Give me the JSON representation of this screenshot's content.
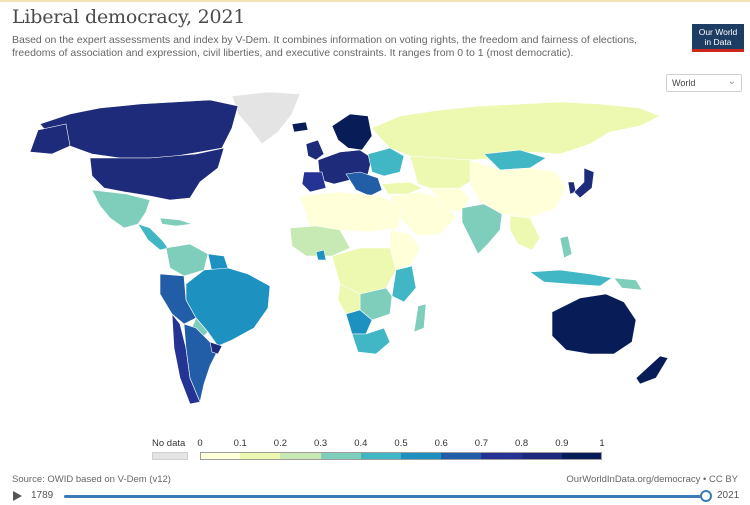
{
  "header": {
    "title": "Liberal democracy, 2021",
    "subtitle": "Based on the expert assessments and index by V-Dem. It combines information on voting rights, the freedom and fairness of elections, freedoms of association and expression, civil liberties, and executive constraints. It ranges from 0 to 1 (most democratic).",
    "logo_line1": "Our World",
    "logo_line2": "in Data",
    "logo_color": "#1d3d63",
    "logo_accent": "#ce261e"
  },
  "controls": {
    "region_select": "World",
    "region_icon": "chevron-down-icon"
  },
  "legend": {
    "no_data_label": "No data",
    "no_data_color": "#e4e4e4",
    "ticks": [
      "0",
      "0.1",
      "0.2",
      "0.3",
      "0.4",
      "0.5",
      "0.6",
      "0.7",
      "0.8",
      "0.9",
      "1"
    ],
    "bins": [
      {
        "from": 0,
        "to": 0.1,
        "color": "#ffffd9"
      },
      {
        "from": 0.1,
        "to": 0.2,
        "color": "#edf8b1"
      },
      {
        "from": 0.2,
        "to": 0.3,
        "color": "#c7e9b4"
      },
      {
        "from": 0.3,
        "to": 0.4,
        "color": "#7fcdbb"
      },
      {
        "from": 0.4,
        "to": 0.5,
        "color": "#41b6c4"
      },
      {
        "from": 0.5,
        "to": 0.6,
        "color": "#1d91c0"
      },
      {
        "from": 0.6,
        "to": 0.7,
        "color": "#225ea8"
      },
      {
        "from": 0.7,
        "to": 0.8,
        "color": "#253494"
      },
      {
        "from": 0.8,
        "to": 0.9,
        "color": "#1d2b7a"
      },
      {
        "from": 0.9,
        "to": 1,
        "color": "#081d58"
      }
    ]
  },
  "footer": {
    "source": "Source: OWID based on V-Dem (v12)",
    "credit": "OurWorldInData.org/democracy • CC BY"
  },
  "timeline": {
    "start_year": "1789",
    "end_year": "2021",
    "progress": 1.0
  }
}
